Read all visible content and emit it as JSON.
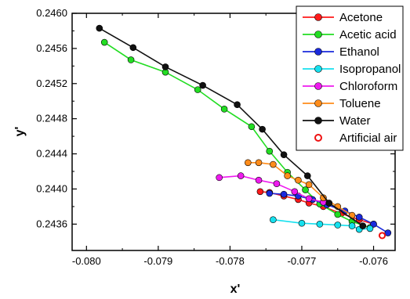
{
  "chart_data": {
    "type": "line",
    "xlabel": "x'",
    "ylabel": "y'",
    "xlim": [
      -0.0802,
      -0.0757
    ],
    "ylim": [
      0.2433,
      0.246
    ],
    "x_ticks": [
      -0.08,
      -0.079,
      -0.078,
      -0.077,
      -0.076
    ],
    "x_tick_labels": [
      "-0.080",
      "-0.079",
      "-0.078",
      "-0.077",
      "-0.076"
    ],
    "y_ticks": [
      0.2436,
      0.244,
      0.2444,
      0.2448,
      0.2452,
      0.2456,
      0.246
    ],
    "y_tick_labels": [
      "0.2436",
      "0.2440",
      "0.2444",
      "0.2448",
      "0.2452",
      "0.2456",
      "0.2460"
    ],
    "grid": false,
    "legend_position": "top-right",
    "series": [
      {
        "name": "Acetone",
        "color": "#ff1a1a",
        "marker": "filled-circle",
        "x": [
          -0.07758,
          -0.07745,
          -0.07725,
          -0.07705,
          -0.0769,
          -0.0767,
          -0.07645,
          -0.0762,
          -0.076
        ],
        "y": [
          0.24397,
          0.24396,
          0.24392,
          0.24388,
          0.24384,
          0.2438,
          0.24372,
          0.24365,
          0.2436
        ]
      },
      {
        "name": "Acetic acid",
        "color": "#22dd22",
        "marker": "filled-circle",
        "x": [
          -0.07975,
          -0.07938,
          -0.0789,
          -0.07845,
          -0.07808,
          -0.0777,
          -0.07745,
          -0.0772,
          -0.07695,
          -0.07675,
          -0.0765,
          -0.0763,
          -0.07605
        ],
        "y": [
          0.24567,
          0.24547,
          0.24533,
          0.24513,
          0.24491,
          0.24471,
          0.24443,
          0.24419,
          0.24399,
          0.24383,
          0.24371,
          0.24363,
          0.24356
        ]
      },
      {
        "name": "Ethanol",
        "color": "#1a2adc",
        "marker": "filled-circle",
        "x": [
          -0.07745,
          -0.07725,
          -0.07705,
          -0.07685,
          -0.07665,
          -0.0764,
          -0.0762,
          -0.076,
          -0.0758
        ],
        "y": [
          0.24395,
          0.24394,
          0.24392,
          0.24388,
          0.24382,
          0.24375,
          0.24368,
          0.2436,
          0.2435
        ]
      },
      {
        "name": "Isopropanol",
        "color": "#16e0ee",
        "marker": "filled-circle",
        "x": [
          -0.0774,
          -0.077,
          -0.07675,
          -0.0765,
          -0.0763,
          -0.0762,
          -0.07605
        ],
        "y": [
          0.24365,
          0.24361,
          0.2436,
          0.24359,
          0.24358,
          0.24354,
          0.24355
        ]
      },
      {
        "name": "Chloroform",
        "color": "#ee1aee",
        "marker": "filled-circle",
        "x": [
          -0.07815,
          -0.07785,
          -0.0776,
          -0.07735,
          -0.0771,
          -0.0769,
          -0.0767
        ],
        "y": [
          0.24413,
          0.24415,
          0.2441,
          0.24406,
          0.24397,
          0.24389,
          0.24385
        ]
      },
      {
        "name": "Toluene",
        "color": "#ff8c1a",
        "marker": "filled-circle",
        "x": [
          -0.07775,
          -0.0776,
          -0.0774,
          -0.0772,
          -0.07705,
          -0.0769,
          -0.0767,
          -0.0765,
          -0.0763
        ],
        "y": [
          0.2443,
          0.2443,
          0.24428,
          0.24415,
          0.2441,
          0.24405,
          0.2439,
          0.2438,
          0.2437
        ]
      },
      {
        "name": "Water",
        "color": "#111111",
        "marker": "filled-circle",
        "x": [
          -0.07982,
          -0.07935,
          -0.0789,
          -0.07838,
          -0.0779,
          -0.07755,
          -0.07725,
          -0.07692,
          -0.07662,
          -0.07615
        ],
        "y": [
          0.24583,
          0.24561,
          0.24539,
          0.24518,
          0.24496,
          0.24468,
          0.24439,
          0.24415,
          0.24384,
          0.24358
        ]
      },
      {
        "name": "Artificial air",
        "color": "#ee1111",
        "marker": "open-circle",
        "x": [
          -0.07588
        ],
        "y": [
          0.24347
        ]
      }
    ]
  }
}
